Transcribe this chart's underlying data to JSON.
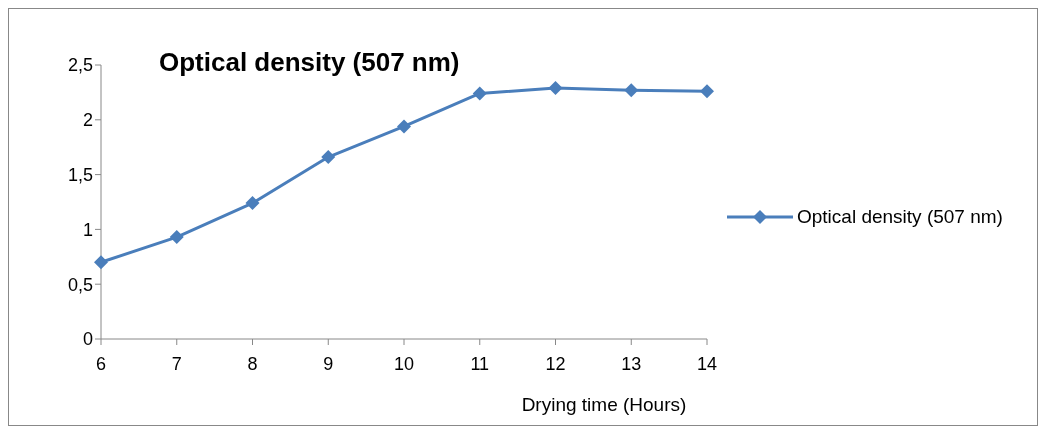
{
  "chart_data": {
    "type": "line",
    "title": "Optical density (507 nm)",
    "xlabel": "Drying time (Hours)",
    "categories": [
      "6",
      "7",
      "8",
      "9",
      "10",
      "11",
      "12",
      "13",
      "14"
    ],
    "series": [
      {
        "name": "Optical density (507 nm)",
        "color": "#4a7ebb",
        "values": [
          0.7,
          0.93,
          1.24,
          1.66,
          1.94,
          2.24,
          2.29,
          2.27,
          2.26
        ]
      }
    ],
    "ylim": [
      0,
      2.5
    ],
    "yticks": [
      0,
      {
        "value": 0.5,
        "label": "0,5"
      },
      1,
      {
        "value": 1.5,
        "label": "1,5"
      },
      2,
      {
        "value": 2.5,
        "label": "2,5"
      }
    ],
    "grid": false,
    "legend": "right",
    "marker": "diamond",
    "line_style": "solid"
  }
}
